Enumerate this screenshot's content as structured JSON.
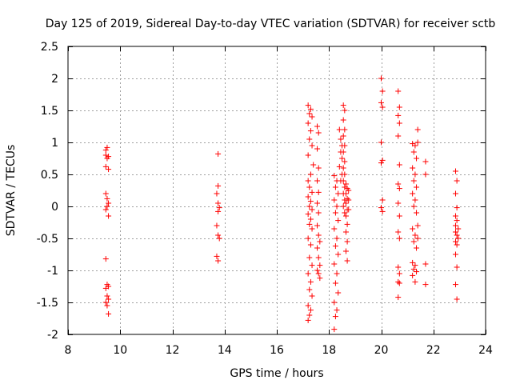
{
  "chart_data": {
    "type": "scatter",
    "title": "Day 125 of 2019, Sidereal Day-to-day VTEC variation (SDTVAR) for receiver sctb",
    "xlabel": "GPS time / hours",
    "ylabel": "SDTVAR / TECUs",
    "xlim": [
      8,
      24
    ],
    "ylim": [
      -2,
      2.5
    ],
    "xticks": [
      8,
      10,
      12,
      14,
      16,
      18,
      20,
      22,
      24
    ],
    "yticks": [
      -2,
      -1.5,
      -1,
      -0.5,
      0,
      0.5,
      1,
      1.5,
      2,
      2.5
    ],
    "xtick_labels": [
      "8",
      "10",
      "12",
      "14",
      "16",
      "18",
      "20",
      "22",
      "24"
    ],
    "ytick_labels": [
      "-2",
      "-1.5",
      "-1",
      "-0.5",
      "0",
      "0.5",
      "1",
      "1.5",
      "2",
      "2.5"
    ],
    "grid": true,
    "marker": "+",
    "color": "#ff0000",
    "series": [
      {
        "name": "sctb",
        "points": [
          [
            9.45,
            0.88
          ],
          [
            9.5,
            0.92
          ],
          [
            9.45,
            0.8
          ],
          [
            9.55,
            0.78
          ],
          [
            9.5,
            0.75
          ],
          [
            9.45,
            0.62
          ],
          [
            9.55,
            0.58
          ],
          [
            9.45,
            0.2
          ],
          [
            9.5,
            0.12
          ],
          [
            9.55,
            0.05
          ],
          [
            9.5,
            0.0
          ],
          [
            9.45,
            -0.05
          ],
          [
            9.55,
            -0.15
          ],
          [
            9.45,
            -0.82
          ],
          [
            9.5,
            -1.22
          ],
          [
            9.55,
            -1.25
          ],
          [
            9.45,
            -1.28
          ],
          [
            9.5,
            -1.4
          ],
          [
            9.55,
            -1.45
          ],
          [
            9.45,
            -1.5
          ],
          [
            9.5,
            -1.55
          ],
          [
            9.55,
            -1.68
          ],
          [
            13.75,
            0.82
          ],
          [
            13.75,
            0.32
          ],
          [
            13.7,
            0.2
          ],
          [
            13.75,
            0.05
          ],
          [
            13.8,
            -0.02
          ],
          [
            13.75,
            -0.08
          ],
          [
            13.7,
            -0.3
          ],
          [
            13.75,
            -0.45
          ],
          [
            13.8,
            -0.5
          ],
          [
            13.7,
            -0.78
          ],
          [
            13.75,
            -0.85
          ],
          [
            17.2,
            1.58
          ],
          [
            17.3,
            1.52
          ],
          [
            17.25,
            1.45
          ],
          [
            17.35,
            1.4
          ],
          [
            17.2,
            1.3
          ],
          [
            17.3,
            1.18
          ],
          [
            17.25,
            1.05
          ],
          [
            17.35,
            0.95
          ],
          [
            17.2,
            0.8
          ],
          [
            17.4,
            0.65
          ],
          [
            17.3,
            0.5
          ],
          [
            17.2,
            0.4
          ],
          [
            17.25,
            0.3
          ],
          [
            17.35,
            0.22
          ],
          [
            17.2,
            0.15
          ],
          [
            17.3,
            0.08
          ],
          [
            17.25,
            0.0
          ],
          [
            17.35,
            -0.05
          ],
          [
            17.2,
            -0.12
          ],
          [
            17.3,
            -0.2
          ],
          [
            17.25,
            -0.28
          ],
          [
            17.35,
            -0.35
          ],
          [
            17.2,
            -0.5
          ],
          [
            17.3,
            -0.6
          ],
          [
            17.25,
            -0.8
          ],
          [
            17.35,
            -0.92
          ],
          [
            17.2,
            -1.05
          ],
          [
            17.3,
            -1.18
          ],
          [
            17.25,
            -1.3
          ],
          [
            17.35,
            -1.4
          ],
          [
            17.2,
            -1.55
          ],
          [
            17.3,
            -1.62
          ],
          [
            17.25,
            -1.7
          ],
          [
            17.2,
            -1.78
          ],
          [
            17.55,
            1.25
          ],
          [
            17.6,
            1.15
          ],
          [
            17.55,
            0.9
          ],
          [
            17.6,
            0.6
          ],
          [
            17.55,
            0.4
          ],
          [
            17.6,
            0.22
          ],
          [
            17.55,
            0.05
          ],
          [
            17.6,
            -0.1
          ],
          [
            17.55,
            -0.3
          ],
          [
            17.6,
            -0.45
          ],
          [
            17.65,
            -0.55
          ],
          [
            17.55,
            -0.65
          ],
          [
            17.6,
            -0.8
          ],
          [
            17.65,
            -0.92
          ],
          [
            17.55,
            -1.0
          ],
          [
            17.6,
            -1.05
          ],
          [
            17.65,
            -1.12
          ],
          [
            18.2,
            0.48
          ],
          [
            18.3,
            0.4
          ],
          [
            18.25,
            0.3
          ],
          [
            18.35,
            0.2
          ],
          [
            18.2,
            0.1
          ],
          [
            18.3,
            0.0
          ],
          [
            18.25,
            -0.1
          ],
          [
            18.35,
            -0.22
          ],
          [
            18.2,
            -0.35
          ],
          [
            18.3,
            -0.5
          ],
          [
            18.25,
            -0.62
          ],
          [
            18.35,
            -0.75
          ],
          [
            18.2,
            -0.9
          ],
          [
            18.3,
            -1.05
          ],
          [
            18.25,
            -1.2
          ],
          [
            18.35,
            -1.35
          ],
          [
            18.2,
            -1.5
          ],
          [
            18.3,
            -1.62
          ],
          [
            18.25,
            -1.72
          ],
          [
            18.2,
            -1.92
          ],
          [
            18.4,
            1.2
          ],
          [
            18.45,
            1.05
          ],
          [
            18.5,
            0.95
          ],
          [
            18.45,
            0.85
          ],
          [
            18.5,
            0.75
          ],
          [
            18.4,
            0.62
          ],
          [
            18.5,
            0.5
          ],
          [
            18.45,
            0.4
          ],
          [
            18.55,
            1.58
          ],
          [
            18.6,
            1.5
          ],
          [
            18.55,
            1.35
          ],
          [
            18.6,
            1.2
          ],
          [
            18.55,
            1.1
          ],
          [
            18.6,
            0.95
          ],
          [
            18.55,
            0.85
          ],
          [
            18.6,
            0.7
          ],
          [
            18.55,
            0.6
          ],
          [
            18.6,
            0.5
          ],
          [
            18.55,
            0.4
          ],
          [
            18.6,
            0.3
          ],
          [
            18.55,
            0.2
          ],
          [
            18.6,
            0.1
          ],
          [
            18.55,
            0.0
          ],
          [
            18.6,
            -0.1
          ],
          [
            18.65,
            0.35
          ],
          [
            18.7,
            0.28
          ],
          [
            18.65,
            0.2
          ],
          [
            18.7,
            0.12
          ],
          [
            18.65,
            0.05
          ],
          [
            18.7,
            -0.05
          ],
          [
            18.65,
            -0.15
          ],
          [
            18.7,
            -0.28
          ],
          [
            18.65,
            -0.4
          ],
          [
            18.7,
            -0.55
          ],
          [
            18.65,
            -0.7
          ],
          [
            18.7,
            -0.85
          ],
          [
            18.75,
            0.25
          ],
          [
            18.75,
            0.1
          ],
          [
            18.75,
            -0.05
          ],
          [
            20.0,
            2.0
          ],
          [
            20.05,
            1.8
          ],
          [
            20.0,
            1.62
          ],
          [
            20.05,
            1.55
          ],
          [
            20.0,
            1.0
          ],
          [
            20.05,
            0.72
          ],
          [
            20.0,
            0.68
          ],
          [
            20.05,
            0.1
          ],
          [
            20.0,
            -0.02
          ],
          [
            20.05,
            -0.08
          ],
          [
            20.65,
            1.8
          ],
          [
            20.7,
            1.55
          ],
          [
            20.65,
            1.42
          ],
          [
            20.7,
            1.3
          ],
          [
            20.65,
            1.1
          ],
          [
            20.7,
            0.65
          ],
          [
            20.65,
            0.35
          ],
          [
            20.7,
            0.28
          ],
          [
            20.65,
            0.05
          ],
          [
            20.7,
            -0.15
          ],
          [
            20.65,
            -0.4
          ],
          [
            20.7,
            -0.5
          ],
          [
            20.65,
            -0.95
          ],
          [
            20.7,
            -1.05
          ],
          [
            20.65,
            -1.18
          ],
          [
            20.7,
            -1.2
          ],
          [
            20.65,
            -1.42
          ],
          [
            21.2,
            0.98
          ],
          [
            21.3,
            0.95
          ],
          [
            21.25,
            0.85
          ],
          [
            21.35,
            0.75
          ],
          [
            21.2,
            0.6
          ],
          [
            21.3,
            0.5
          ],
          [
            21.25,
            0.4
          ],
          [
            21.35,
            0.3
          ],
          [
            21.2,
            0.2
          ],
          [
            21.3,
            0.1
          ],
          [
            21.25,
            0.0
          ],
          [
            21.35,
            -0.1
          ],
          [
            21.2,
            -0.35
          ],
          [
            21.3,
            -0.45
          ],
          [
            21.25,
            -0.55
          ],
          [
            21.35,
            -0.65
          ],
          [
            21.2,
            -0.88
          ],
          [
            21.3,
            -0.92
          ],
          [
            21.25,
            -0.98
          ],
          [
            21.35,
            -1.02
          ],
          [
            21.2,
            -1.08
          ],
          [
            21.3,
            -1.18
          ],
          [
            21.4,
            1.2
          ],
          [
            21.4,
            1.0
          ],
          [
            21.4,
            -0.3
          ],
          [
            21.4,
            -0.5
          ],
          [
            21.7,
            0.7
          ],
          [
            21.7,
            0.5
          ],
          [
            21.7,
            -0.9
          ],
          [
            21.7,
            -1.22
          ],
          [
            22.85,
            0.55
          ],
          [
            22.9,
            0.4
          ],
          [
            22.85,
            0.2
          ],
          [
            22.9,
            -0.02
          ],
          [
            22.85,
            -0.15
          ],
          [
            22.9,
            -0.22
          ],
          [
            22.85,
            -0.3
          ],
          [
            22.95,
            -0.35
          ],
          [
            22.85,
            -0.4
          ],
          [
            22.9,
            -0.45
          ],
          [
            22.95,
            -0.5
          ],
          [
            22.85,
            -0.55
          ],
          [
            22.9,
            -0.6
          ],
          [
            22.85,
            -0.75
          ],
          [
            22.9,
            -0.95
          ],
          [
            22.85,
            -1.22
          ],
          [
            22.9,
            -1.45
          ]
        ]
      }
    ]
  }
}
